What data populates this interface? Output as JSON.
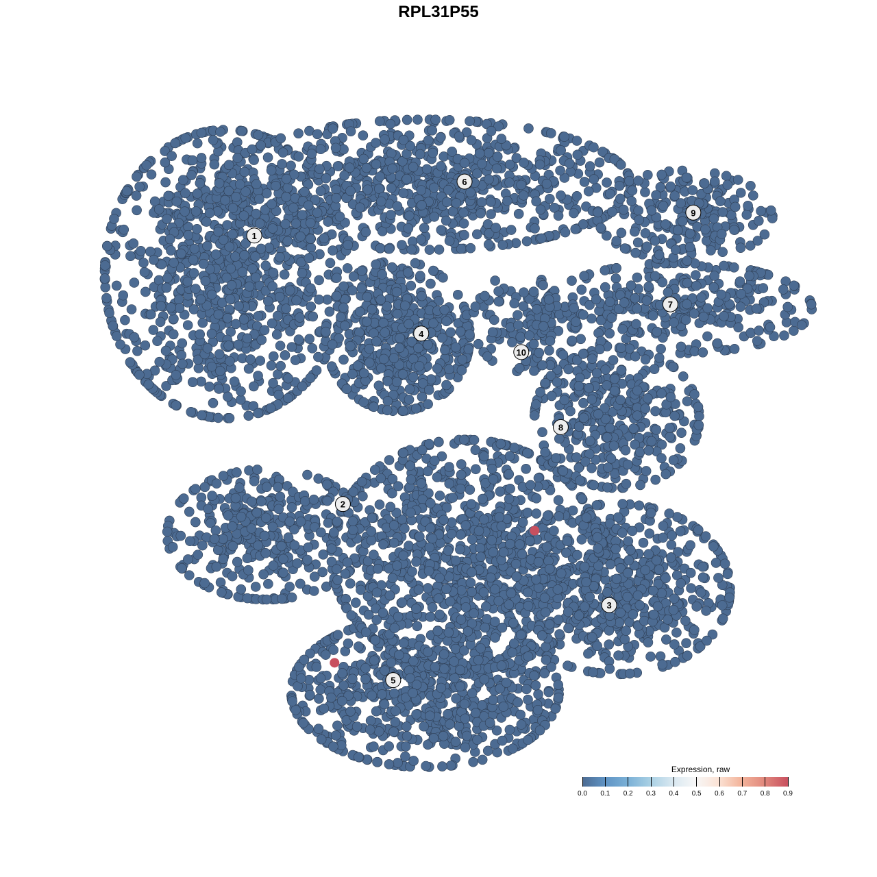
{
  "chart_data": {
    "type": "scatter",
    "title": "RPL31P55",
    "xlabel": "",
    "ylabel": "",
    "axes_visible": false,
    "grid": false,
    "xlim": [
      -50,
      50
    ],
    "ylim": [
      -50,
      50
    ],
    "color_scale": {
      "title": "Expression, raw",
      "range": [
        0,
        0.9
      ],
      "ticks": [
        "0.0",
        "0.1",
        "0.2",
        "0.3",
        "0.4",
        "0.5",
        "0.6",
        "0.7",
        "0.8",
        "0.9"
      ],
      "low_color": "#4c6b92",
      "mid_color": "#f7f7f7",
      "high_color": "#c8505f",
      "placement": "bottom-right"
    },
    "clusters": [
      {
        "label": "1",
        "label_pos": [
          -31.6,
          32.4
        ],
        "blobs": [
          {
            "center": [
              -36,
              26.2
            ],
            "spread": [
              11.8,
              14.4
            ],
            "n": 900
          }
        ]
      },
      {
        "label": "2",
        "label_pos": [
          -17.7,
          -10.9
        ],
        "blobs": [
          {
            "center": [
              -29.6,
              -15.8
            ],
            "spread": [
              9.7,
              6.5
            ],
            "n": 350
          }
        ]
      },
      {
        "label": "3",
        "label_pos": [
          24.1,
          -27.2
        ],
        "blobs": [
          {
            "center": [
              25.3,
              -24.6
            ],
            "spread": [
              11,
              8.5
            ],
            "n": 550
          }
        ]
      },
      {
        "label": "4",
        "label_pos": [
          -5.4,
          16.6
        ],
        "blobs": [
          {
            "center": [
              -9.1,
              16.2
            ],
            "spread": [
              7,
              7.5
            ],
            "n": 450
          }
        ]
      },
      {
        "label": "5",
        "label_pos": [
          -9.8,
          -39.3
        ],
        "blobs": [
          {
            "center": [
              -4.8,
              -41.2
            ],
            "spread": [
              13,
              7.5
            ],
            "n": 650
          },
          {
            "center": [
              1.5,
              -19.1
            ],
            "spread": [
              13,
              11.5
            ],
            "n": 900
          }
        ]
      },
      {
        "label": "6",
        "label_pos": [
          1.4,
          41.1
        ],
        "blobs": [
          {
            "center": [
              -4.8,
              40.6
            ],
            "spread": [
              20,
              6.5
            ],
            "n": 750
          }
        ]
      },
      {
        "label": "7",
        "label_pos": [
          33.7,
          21.3
        ],
        "blobs": [
          {
            "center": [
              34.9,
              20.7
            ],
            "spread": [
              13,
              4.5
            ],
            "n": 300
          }
        ]
      },
      {
        "label": "8",
        "label_pos": [
          16.5,
          1.5
        ],
        "blobs": [
          {
            "center": [
              25.3,
              3
            ],
            "spread": [
              8,
              7
            ],
            "n": 350
          }
        ]
      },
      {
        "label": "9",
        "label_pos": [
          37.3,
          36.1
        ],
        "blobs": [
          {
            "center": [
              36,
              35.6
            ],
            "spread": [
              8.5,
              4.5
            ],
            "n": 200
          }
        ]
      },
      {
        "label": "10",
        "label_pos": [
          10.3,
          13.6
        ],
        "blobs": [
          {
            "center": [
              10.8,
              18.5
            ],
            "spread": [
              5,
              5
            ],
            "n": 120
          }
        ]
      }
    ],
    "baseline_expression": 0.0,
    "highlighted_points": [
      {
        "x": 12.4,
        "y": -15.2,
        "expression": 0.9
      },
      {
        "x": -19.0,
        "y": -36.5,
        "expression": 0.9
      }
    ]
  }
}
